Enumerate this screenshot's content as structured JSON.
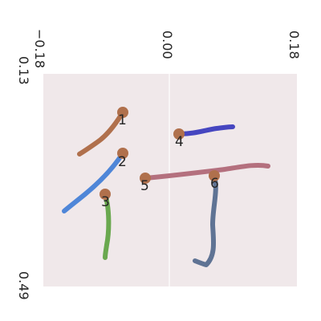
{
  "axes": {
    "x_ticks": [
      "−0.18",
      "0.00",
      "0.18"
    ],
    "y_ticks": [
      "0.13",
      "0.49"
    ],
    "background": "#f0e8ea",
    "gridline": "#ffffff"
  },
  "strokes": [
    {
      "label": "1",
      "color": "#b0704c",
      "marker_color": "#b0704c"
    },
    {
      "label": "2",
      "color": "#4f86d8",
      "marker_color": "#b0704c"
    },
    {
      "label": "3",
      "color": "#6aa84f",
      "marker_color": "#b0704c"
    },
    {
      "label": "4",
      "color": "#4646c0",
      "marker_color": "#b0704c"
    },
    {
      "label": "5",
      "color": "#b4707e",
      "marker_color": "#b0704c"
    },
    {
      "label": "6",
      "color": "#5f7394",
      "marker_color": "#b0704c"
    }
  ]
}
